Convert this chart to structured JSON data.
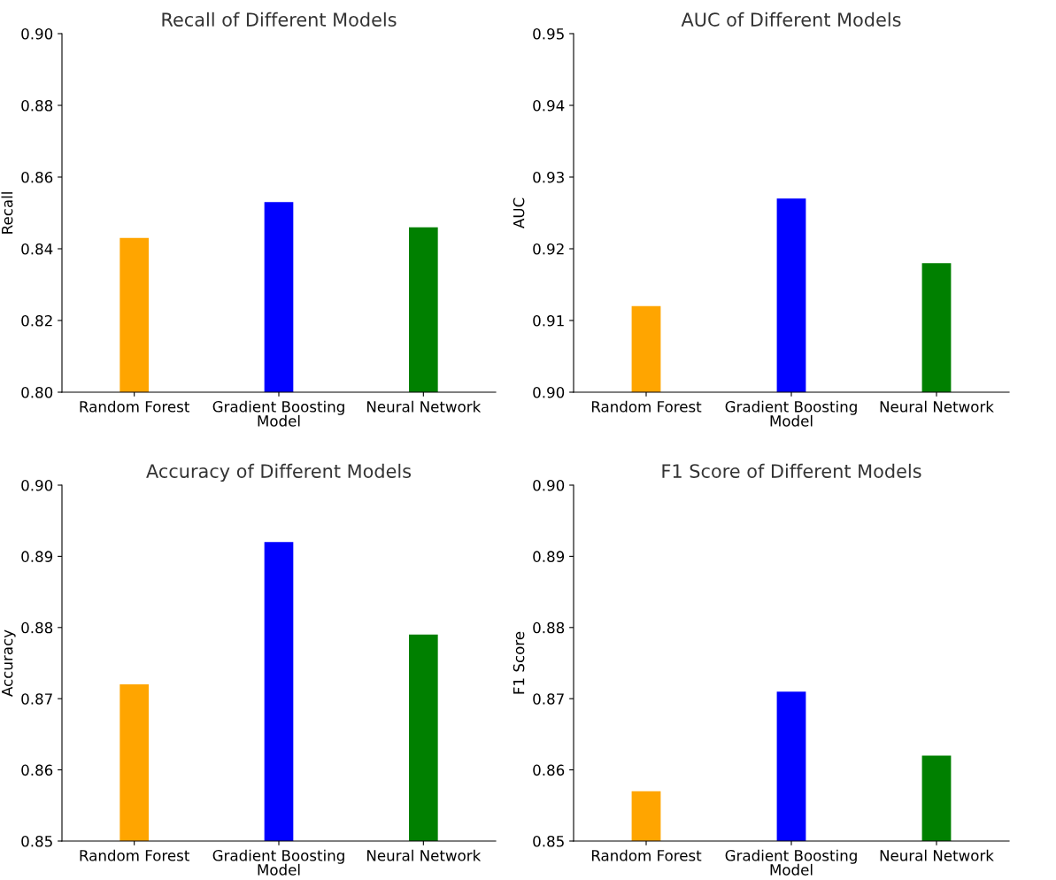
{
  "chart_data": [
    {
      "type": "bar",
      "title": "Recall of Different Models",
      "xlabel": "Model",
      "ylabel": "Recall",
      "categories": [
        "Random Forest",
        "Gradient Boosting",
        "Neural Network"
      ],
      "values": [
        0.843,
        0.853,
        0.846
      ],
      "colors": [
        "#ffa500",
        "#0000ff",
        "#008000"
      ],
      "ylim": [
        0.8,
        0.9
      ],
      "yticks": [
        {
          "value": 0.8,
          "label": "0.80"
        },
        {
          "value": 0.82,
          "label": "0.82"
        },
        {
          "value": 0.84,
          "label": "0.84"
        },
        {
          "value": 0.86,
          "label": "0.86"
        },
        {
          "value": 0.88,
          "label": "0.88"
        },
        {
          "value": 0.9,
          "label": "0.90"
        }
      ],
      "grid": false,
      "legend": false
    },
    {
      "type": "bar",
      "title": "AUC of Different Models",
      "xlabel": "Model",
      "ylabel": "AUC",
      "categories": [
        "Random Forest",
        "Gradient Boosting",
        "Neural Network"
      ],
      "values": [
        0.912,
        0.927,
        0.918
      ],
      "colors": [
        "#ffa500",
        "#0000ff",
        "#008000"
      ],
      "ylim": [
        0.9,
        0.95
      ],
      "yticks": [
        {
          "value": 0.9,
          "label": "0.90"
        },
        0.91,
        0.92,
        0.93,
        0.94,
        0.95
      ],
      "grid": false,
      "legend": false
    },
    {
      "type": "bar",
      "title": "Accuracy of Different Models",
      "xlabel": "Model",
      "ylabel": "Accuracy",
      "categories": [
        "Random Forest",
        "Gradient Boosting",
        "Neural Network"
      ],
      "values": [
        0.872,
        0.892,
        0.879
      ],
      "colors": [
        "#ffa500",
        "#0000ff",
        "#008000"
      ],
      "ylim": [
        0.85,
        0.9
      ],
      "yticks": [
        0.85,
        0.86,
        0.87,
        0.88,
        0.89,
        {
          "value": 0.9,
          "label": "0.90"
        }
      ],
      "grid": false,
      "legend": false
    },
    {
      "type": "bar",
      "title": "F1 Score of Different Models",
      "xlabel": "Model",
      "ylabel": "F1 Score",
      "categories": [
        "Random Forest",
        "Gradient Boosting",
        "Neural Network"
      ],
      "values": [
        0.857,
        0.871,
        0.862
      ],
      "colors": [
        "#ffa500",
        "#0000ff",
        "#008000"
      ],
      "ylim": [
        0.85,
        0.9
      ],
      "yticks": [
        0.85,
        0.86,
        0.87,
        0.88,
        0.89,
        {
          "value": 0.9,
          "label": "0.90"
        }
      ],
      "grid": false,
      "legend": false
    }
  ]
}
